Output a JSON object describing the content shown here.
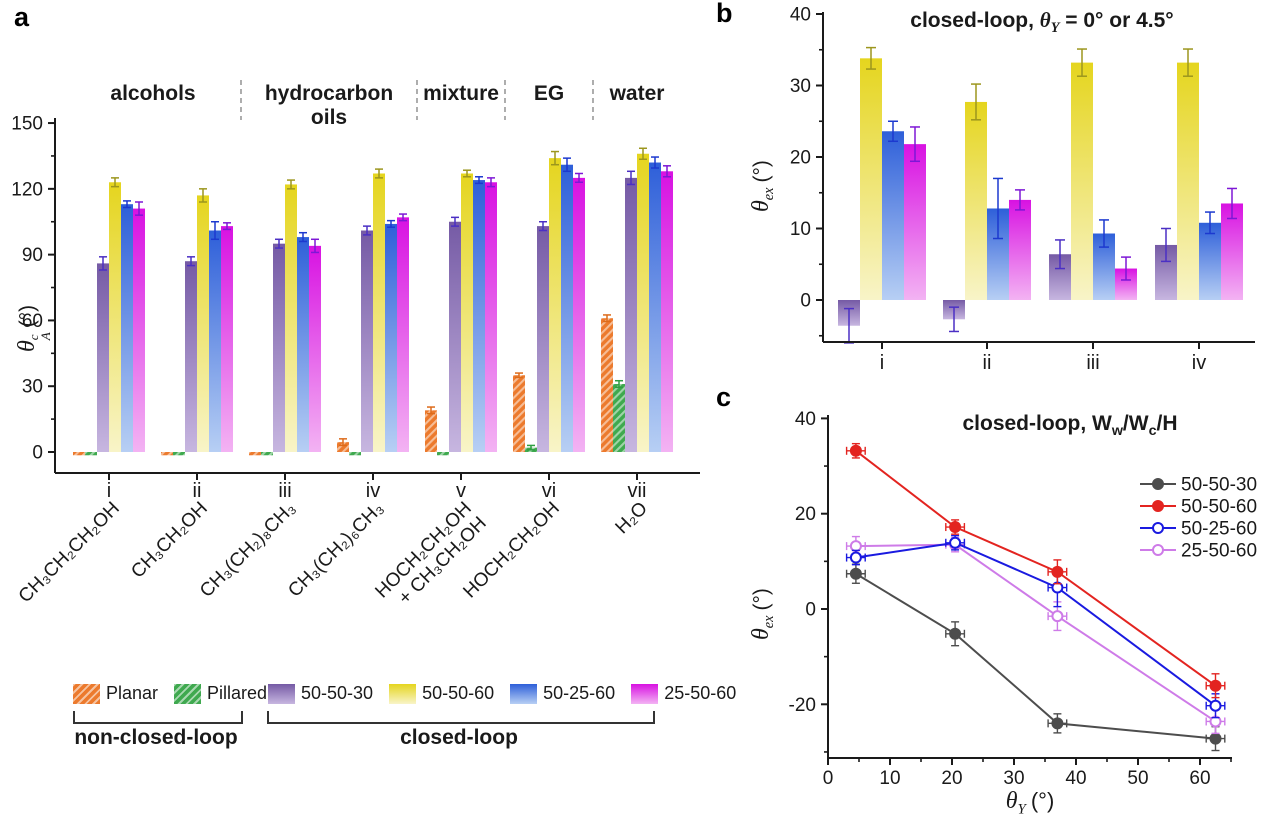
{
  "panels": {
    "a_label": "a",
    "b_label": "b",
    "c_label": "c"
  },
  "chart_data": [
    {
      "id": "a",
      "type": "bar",
      "y_axis": {
        "sym": "θ",
        "sup": "c",
        "sub": "A",
        "unit": "(°)"
      },
      "ylim": [
        -10,
        150
      ],
      "yticks": [
        0,
        30,
        60,
        90,
        120,
        150
      ],
      "yticks_minor": [
        15,
        45,
        75,
        105,
        135
      ],
      "categories": [
        "i",
        "ii",
        "iii",
        "iv",
        "v",
        "vi",
        "vii"
      ],
      "x_chem_labels": [
        [
          "CH₃CH₂CH₂OH"
        ],
        [
          "CH₃CH₂OH"
        ],
        [
          "CH₃(CH₂)₈CH₃"
        ],
        [
          "CH₃(CH₂)₆CH₃"
        ],
        [
          "HOCH₂CH₂OH",
          "+ CH₃CH₂OH"
        ],
        [
          "HOCH₂CH₂OH"
        ],
        [
          "H₂O"
        ]
      ],
      "group_headers": [
        {
          "label": "alcohols",
          "span": [
            0,
            1
          ]
        },
        {
          "label": "hydrocarbon\noils",
          "span": [
            2,
            3
          ]
        },
        {
          "label": "mixture",
          "span": [
            4,
            4
          ]
        },
        {
          "label": "EG",
          "span": [
            5,
            5
          ]
        },
        {
          "label": "water",
          "span": [
            6,
            6
          ]
        }
      ],
      "legend_groups": [
        "non-closed-loop",
        "closed-loop"
      ],
      "series": [
        {
          "name": "Planar",
          "style": "hatched",
          "color": "#EC7A2D",
          "err_color": "#DD6B1A",
          "values": [
            -1.5,
            -1.5,
            -1.5,
            4.5,
            19,
            35,
            61
          ],
          "errors": [
            0,
            0,
            0,
            1.5,
            1.5,
            1,
            1.5
          ]
        },
        {
          "name": "Pillared",
          "style": "hatched",
          "color": "#3FA94F",
          "err_color": "#2F9E42",
          "values": [
            -1.5,
            -1.5,
            -1.5,
            -1.5,
            -1.5,
            2,
            31
          ],
          "errors": [
            0,
            0,
            0,
            0,
            0,
            1,
            1.5
          ]
        },
        {
          "name": "50-50-30",
          "style": "gradient",
          "color": "#755AA5",
          "color2": "#C7B6E0",
          "err_color": "#4B2FC4",
          "values": [
            86,
            87,
            95,
            101,
            105,
            103,
            125
          ],
          "errors": [
            3,
            2,
            2,
            2,
            2,
            2,
            3
          ]
        },
        {
          "name": "50-50-60",
          "style": "gradient",
          "color": "#E5D51E",
          "color2": "#F8F4C8",
          "err_color": "#9C961E",
          "values": [
            123,
            117,
            122,
            127,
            127,
            134,
            136
          ],
          "errors": [
            2,
            3,
            2,
            2,
            1.5,
            3,
            2.5
          ]
        },
        {
          "name": "50-25-60",
          "style": "gradient",
          "color": "#2E5FD9",
          "color2": "#B7CFF4",
          "err_color": "#1C39CF",
          "values": [
            113,
            101,
            98,
            104,
            124,
            131,
            132
          ],
          "errors": [
            1.5,
            4,
            2,
            1.5,
            1.5,
            3,
            2.5
          ]
        },
        {
          "name": "25-50-60",
          "style": "gradient",
          "color": "#D812E2",
          "color2": "#F3B3F3",
          "err_color": "#7D17D6",
          "values": [
            111,
            103,
            94,
            107,
            123,
            125,
            128
          ],
          "errors": [
            3,
            1.5,
            3,
            1.5,
            2,
            2,
            2.5
          ]
        }
      ]
    },
    {
      "id": "b",
      "type": "bar",
      "title_parts": {
        "pre": "closed-loop, ",
        "sym": "θ",
        "sub": "Y",
        "post": " = 0° or 4.5°"
      },
      "y_axis": {
        "sym": "θ",
        "sub": "ex",
        "unit": "(°)"
      },
      "ylim": [
        -6.5,
        40
      ],
      "yticks": [
        0,
        10,
        20,
        30,
        40
      ],
      "yticks_minor": [
        -5,
        5,
        15,
        25,
        35
      ],
      "categories": [
        "i",
        "ii",
        "iii",
        "iv"
      ],
      "series": [
        {
          "name": "50-50-30",
          "values": [
            -3.6,
            -2.7,
            6.4,
            7.7
          ],
          "errors": [
            2.4,
            1.7,
            2.0,
            2.3
          ]
        },
        {
          "name": "50-50-60",
          "values": [
            33.8,
            27.7,
            33.2,
            33.2
          ],
          "errors": [
            1.5,
            2.5,
            1.9,
            1.9
          ]
        },
        {
          "name": "50-25-60",
          "values": [
            23.6,
            12.8,
            9.3,
            10.8
          ],
          "errors": [
            1.4,
            4.2,
            1.9,
            1.5
          ]
        },
        {
          "name": "25-50-60",
          "values": [
            21.8,
            14.0,
            4.4,
            13.5
          ],
          "errors": [
            2.4,
            1.4,
            1.6,
            2.1
          ]
        }
      ]
    },
    {
      "id": "c",
      "type": "line",
      "title_parts": {
        "pre": "closed-loop, W",
        "sub1": "w",
        "mid": "/W",
        "sub2": "c",
        "post": "/H"
      },
      "y_axis": {
        "sym": "θ",
        "sub": "ex",
        "unit": "(°)"
      },
      "x_axis": {
        "sym": "θ",
        "sub": "Y",
        "unit": "(°)"
      },
      "xlim": [
        0,
        65
      ],
      "ylim": [
        -33,
        40
      ],
      "xticks": [
        0,
        10,
        20,
        30,
        40,
        50,
        60
      ],
      "xticks_minor": [
        5,
        15,
        25,
        35,
        45,
        55,
        65
      ],
      "yticks": [
        -20,
        0,
        20,
        40
      ],
      "yticks_minor": [
        -30,
        -10,
        10,
        30
      ],
      "x": [
        4.5,
        20.5,
        37,
        62.5
      ],
      "xerr": 1.5,
      "series": [
        {
          "name": "50-50-30",
          "color": "#4D4D4D",
          "marker": "filled",
          "values": [
            7.4,
            -5.2,
            -24.0,
            -27.2
          ],
          "yerr": [
            2.0,
            2.5,
            2.0,
            2.5
          ]
        },
        {
          "name": "50-50-60",
          "color": "#E32420",
          "marker": "filled",
          "values": [
            33.2,
            17.2,
            7.8,
            -16.1
          ],
          "yerr": [
            1.5,
            1.5,
            2.5,
            2.5
          ]
        },
        {
          "name": "50-25-60",
          "color": "#1A1AE0",
          "marker": "open",
          "values": [
            10.8,
            13.9,
            4.5,
            -20.3
          ],
          "yerr": [
            1.5,
            1.5,
            4.0,
            2.5
          ]
        },
        {
          "name": "25-50-60",
          "color": "#CE7BE8",
          "marker": "open",
          "values": [
            13.2,
            13.5,
            -1.5,
            -23.6
          ],
          "yerr": [
            2.0,
            1.5,
            3.0,
            2.5
          ]
        }
      ]
    }
  ]
}
